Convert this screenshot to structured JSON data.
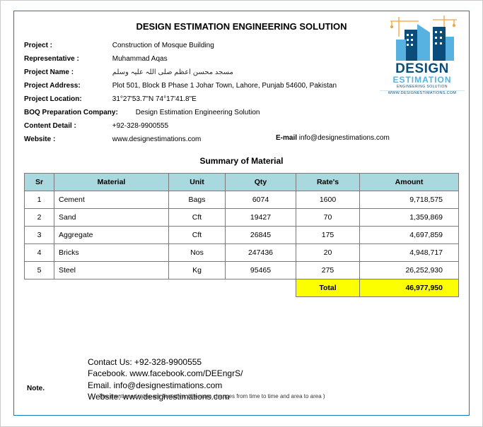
{
  "doc": {
    "title": "DESIGN ESTIMATION ENGINEERING SOLUTION",
    "subhead": "Summary of Material"
  },
  "logo": {
    "word1": "DESIGN",
    "word2": "ESTIMATION",
    "sub": "ENGINEERING SOLUTION",
    "url": "WWW.DESIGNESTIMATIONS.COM",
    "colors": {
      "dark": "#0b4d7a",
      "light": "#57b2e2",
      "crane": "#f2a53a"
    }
  },
  "meta": {
    "project_label": "Project :",
    "project_value": "Construction of Mosque Building",
    "rep_label": "Representative :",
    "rep_value": "Muhammad Aqas",
    "name_label": "Project Name :",
    "name_value": "مسجد محسن اعظم   صلی اللہ علیہ وسلم",
    "addr_label": "Project Address:",
    "addr_value": "Plot 501, Block B Phase 1 Johar Town, Lahore, Punjab 54600, Pakistan",
    "loc_label": "Project Location:",
    "loc_value": "31°27'53.7\"N 74°17'41.8\"E",
    "boq_label": "BOQ Preparation Company:",
    "boq_value": "Design Estimation Engineering Solution",
    "contact_label": "Content Detail :",
    "contact_value": "+92-328-9900555",
    "website_label": "Website :",
    "website_value": "www.designestimations.com",
    "email_label": "E-mail",
    "email_value": "info@designestimations.com"
  },
  "table": {
    "columns": [
      "Sr",
      "Material",
      "Unit",
      "Qty",
      "Rate's",
      "Amount"
    ],
    "header_bg": "#a9d8df",
    "border_color": "#7a7a7a",
    "rows": [
      {
        "sr": "1",
        "material": "Cement",
        "unit": "Bags",
        "qty": "6074",
        "rate": "1600",
        "amount": "9,718,575"
      },
      {
        "sr": "2",
        "material": "Sand",
        "unit": "Cft",
        "qty": "19427",
        "rate": "70",
        "amount": "1,359,869"
      },
      {
        "sr": "3",
        "material": "Aggregate",
        "unit": "Cft",
        "qty": "26845",
        "rate": "175",
        "amount": "4,697,859"
      },
      {
        "sr": "4",
        "material": "Bricks",
        "unit": "Nos",
        "qty": "247436",
        "rate": "20",
        "amount": "4,948,717"
      },
      {
        "sr": "5",
        "material": "Steel",
        "unit": "Kg",
        "qty": "95465",
        "rate": "275",
        "amount": "26,252,930"
      }
    ],
    "total_label": "Total",
    "total_value": "46,977,950",
    "total_bg": "#fbff00"
  },
  "footer": {
    "note_label": "Note.",
    "contact_us": "Contact Us:  +92-328-9900555",
    "facebook": "Facebook.  www.facebook.com/DEEngrS/",
    "email": "Email.       info@designestimations.com",
    "website": "Website:    www.designestimations.com",
    "disclaimer": "The mentioned rates are Tentative. (the rates changes from time to time and area to area )"
  }
}
